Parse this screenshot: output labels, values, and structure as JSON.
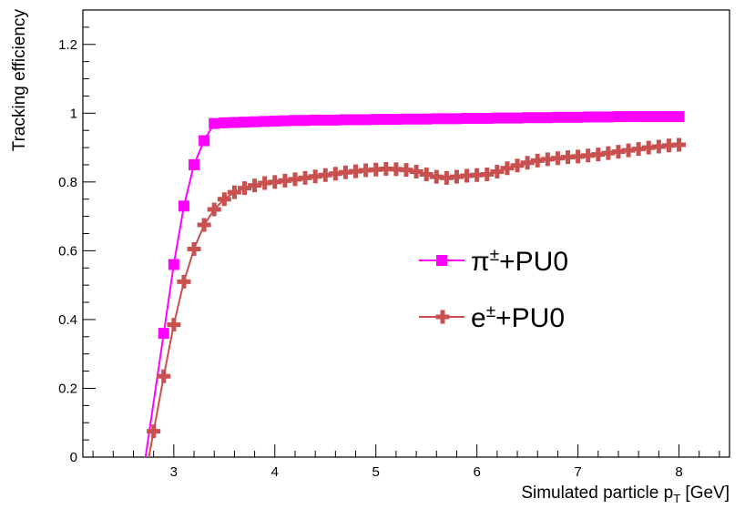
{
  "chart_data": {
    "type": "line",
    "xlabel": "Simulated particle p",
    "xlabel_sub": "T",
    "xlabel_unit": " [GeV]",
    "ylabel": "Tracking efficiency",
    "xlim": [
      2.1,
      8.5
    ],
    "ylim": [
      0,
      1.3
    ],
    "x_ticks": [
      "3",
      "4",
      "5",
      "6",
      "7",
      "8"
    ],
    "y_ticks": [
      "0",
      "0.2",
      "0.4",
      "0.6",
      "0.8",
      "1",
      "1.2"
    ],
    "grid": false,
    "legend_position": "center-right",
    "series": [
      {
        "name": "π±+PU0",
        "legend_base": "π",
        "legend_sup": "±",
        "legend_tail": "+PU0",
        "color": "#ff00ff",
        "marker": "square",
        "x": [
          2.9,
          3.0,
          3.1,
          3.2,
          3.3,
          3.4,
          3.5,
          3.6,
          3.7,
          3.8,
          3.9,
          4.0,
          4.1,
          4.2,
          4.3,
          4.4,
          4.5,
          4.6,
          4.7,
          4.8,
          4.9,
          5.0,
          5.1,
          5.2,
          5.3,
          5.4,
          5.5,
          5.6,
          5.7,
          5.8,
          5.9,
          6.0,
          6.1,
          6.2,
          6.3,
          6.4,
          6.5,
          6.6,
          6.7,
          6.8,
          6.9,
          7.0,
          7.1,
          7.2,
          7.3,
          7.4,
          7.5,
          7.6,
          7.7,
          7.8,
          7.9,
          8.0
        ],
        "values": [
          0.36,
          0.56,
          0.73,
          0.85,
          0.92,
          0.97,
          0.972,
          0.973,
          0.974,
          0.975,
          0.976,
          0.977,
          0.978,
          0.979,
          0.979,
          0.98,
          0.98,
          0.98,
          0.981,
          0.981,
          0.981,
          0.982,
          0.982,
          0.982,
          0.983,
          0.983,
          0.983,
          0.984,
          0.984,
          0.984,
          0.985,
          0.985,
          0.985,
          0.986,
          0.986,
          0.986,
          0.987,
          0.987,
          0.987,
          0.988,
          0.988,
          0.988,
          0.989,
          0.989,
          0.989,
          0.99,
          0.99,
          0.99,
          0.99,
          0.99,
          0.99,
          0.99
        ]
      },
      {
        "name": "e±+PU0",
        "legend_base": "e",
        "legend_sup": "±",
        "legend_tail": "+PU0",
        "color": "#c8504e",
        "marker": "cross",
        "x": [
          2.8,
          2.9,
          3.0,
          3.1,
          3.2,
          3.3,
          3.4,
          3.5,
          3.6,
          3.7,
          3.8,
          3.9,
          4.0,
          4.1,
          4.2,
          4.3,
          4.4,
          4.5,
          4.6,
          4.7,
          4.8,
          4.9,
          5.0,
          5.1,
          5.2,
          5.3,
          5.4,
          5.5,
          5.6,
          5.7,
          5.8,
          5.9,
          6.0,
          6.1,
          6.2,
          6.3,
          6.4,
          6.5,
          6.6,
          6.7,
          6.8,
          6.9,
          7.0,
          7.1,
          7.2,
          7.3,
          7.4,
          7.5,
          7.6,
          7.7,
          7.8,
          7.9,
          8.0
        ],
        "values": [
          0.075,
          0.235,
          0.385,
          0.51,
          0.605,
          0.675,
          0.72,
          0.75,
          0.77,
          0.782,
          0.79,
          0.797,
          0.8,
          0.804,
          0.808,
          0.812,
          0.816,
          0.82,
          0.824,
          0.828,
          0.831,
          0.834,
          0.836,
          0.838,
          0.837,
          0.835,
          0.83,
          0.822,
          0.815,
          0.812,
          0.815,
          0.818,
          0.82,
          0.822,
          0.83,
          0.84,
          0.848,
          0.856,
          0.862,
          0.866,
          0.869,
          0.872,
          0.874,
          0.877,
          0.88,
          0.884,
          0.888,
          0.892,
          0.896,
          0.9,
          0.903,
          0.906,
          0.908
        ]
      }
    ]
  }
}
